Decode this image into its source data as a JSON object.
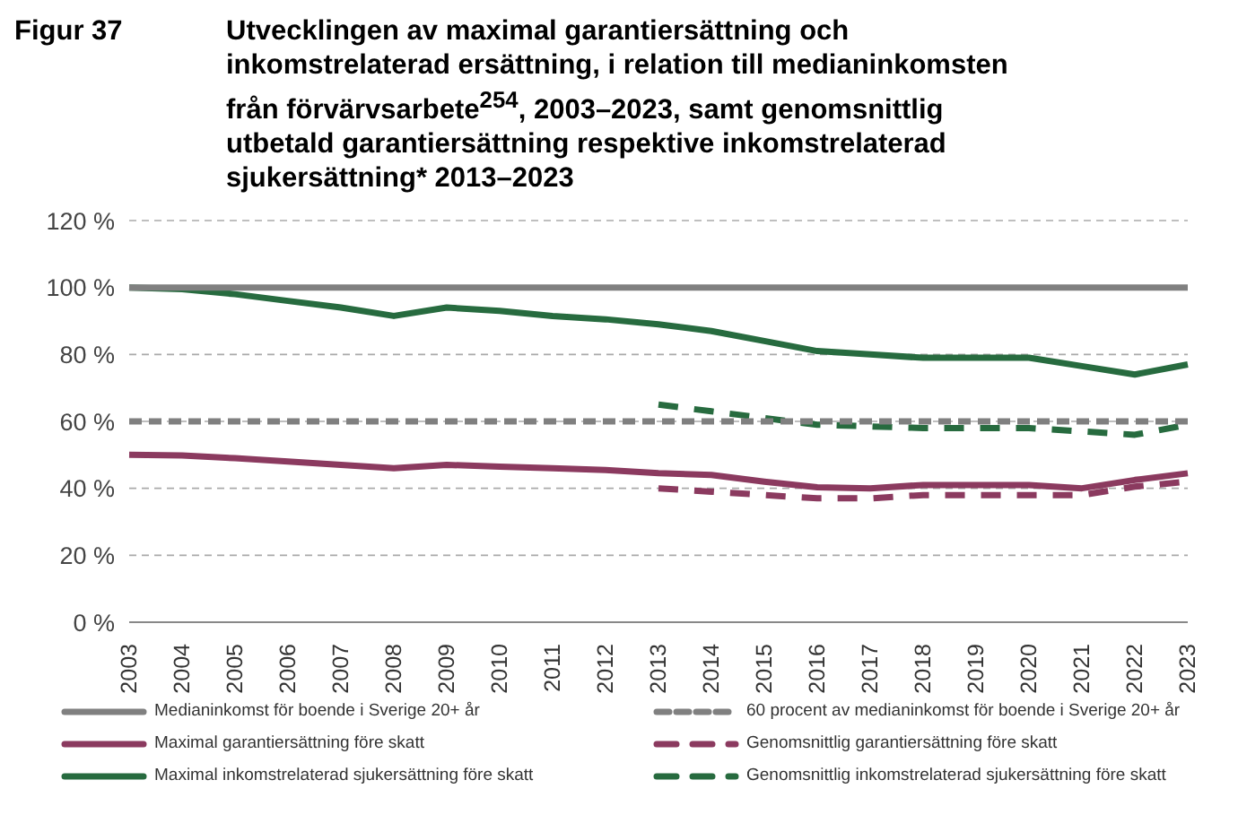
{
  "chart_data": {
    "type": "line",
    "title": "Figur 37",
    "subtitle": "Utvecklingen av maximal garantiersättning och inkomstrelaterad ersättning, i relation till medianinkomsten från förvärvsarbete$^{254}$, 2003–2023, samt genomsnittlig utbetald garantiersättning respektive inkomstrelaterad sjukersättning* 2013–2023",
    "categories": [
      "2003",
      "2004",
      "2005",
      "2006",
      "2007",
      "2008",
      "2009",
      "2010",
      "2011",
      "2012",
      "2013",
      "2014",
      "2015",
      "2016",
      "2017",
      "2018",
      "2019",
      "2020",
      "2021",
      "2022",
      "2023"
    ],
    "series": [
      {
        "name": "Medianinkomst för boende i Sverige 20+ år",
        "color": "#808080",
        "line_style": "solid",
        "values": [
          100,
          100,
          100,
          100,
          100,
          100,
          100,
          100,
          100,
          100,
          100,
          100,
          100,
          100,
          100,
          100,
          100,
          100,
          100,
          100,
          100
        ]
      },
      {
        "name": "60 procent av medianinkomst för boende i Sverige 20+ år",
        "color": "#808080",
        "line_style": "dashed",
        "values": [
          60,
          60,
          60,
          60,
          60,
          60,
          60,
          60,
          60,
          60,
          60,
          60,
          60,
          60,
          60,
          60,
          60,
          60,
          60,
          60,
          60
        ]
      },
      {
        "name": "Maximal garantiersättning före skatt",
        "color": "#8b3a5f",
        "line_style": "solid",
        "values": [
          50,
          49.8,
          49,
          48,
          47,
          46,
          47,
          46.5,
          46,
          45.5,
          44.5,
          44,
          42,
          40.3,
          40,
          41,
          41,
          41,
          40,
          42.5,
          44.5
        ]
      },
      {
        "name": "Genomsnittlig garantiersättning före skatt",
        "color": "#8b3a5f",
        "line_style": "dashed",
        "values": [
          null,
          null,
          null,
          null,
          null,
          null,
          null,
          null,
          null,
          null,
          40,
          39,
          38,
          37,
          37,
          38,
          38,
          38,
          38,
          40.5,
          42
        ]
      },
      {
        "name": "Maximal inkomstrelaterad sjukersättning före skatt",
        "color": "#276b3f",
        "line_style": "solid",
        "values": [
          100,
          99.5,
          98,
          96,
          94,
          91.5,
          94,
          93,
          91.5,
          90.5,
          89,
          87,
          84,
          81,
          80,
          79,
          79,
          79,
          76.5,
          74,
          77
        ]
      },
      {
        "name": "Genomsnittlig inkomstrelaterad sjukersättning före skatt",
        "color": "#276b3f",
        "line_style": "dashed",
        "values": [
          null,
          null,
          null,
          null,
          null,
          null,
          null,
          null,
          null,
          null,
          65,
          63,
          61,
          59,
          58.5,
          58,
          58,
          58,
          57,
          56,
          59
        ]
      }
    ],
    "ylim": [
      0,
      120
    ],
    "yticks": [
      {
        "value": 0,
        "label": "0 %"
      },
      {
        "value": 20,
        "label": "20 %"
      },
      {
        "value": 40,
        "label": "40 %"
      },
      {
        "value": 60,
        "label": "60 %"
      },
      {
        "value": 80,
        "label": "80 %"
      },
      {
        "value": 100,
        "label": "100 %"
      },
      {
        "value": 120,
        "label": "120 %"
      }
    ],
    "grid": "y",
    "legend": "bottom",
    "marker": "none"
  }
}
